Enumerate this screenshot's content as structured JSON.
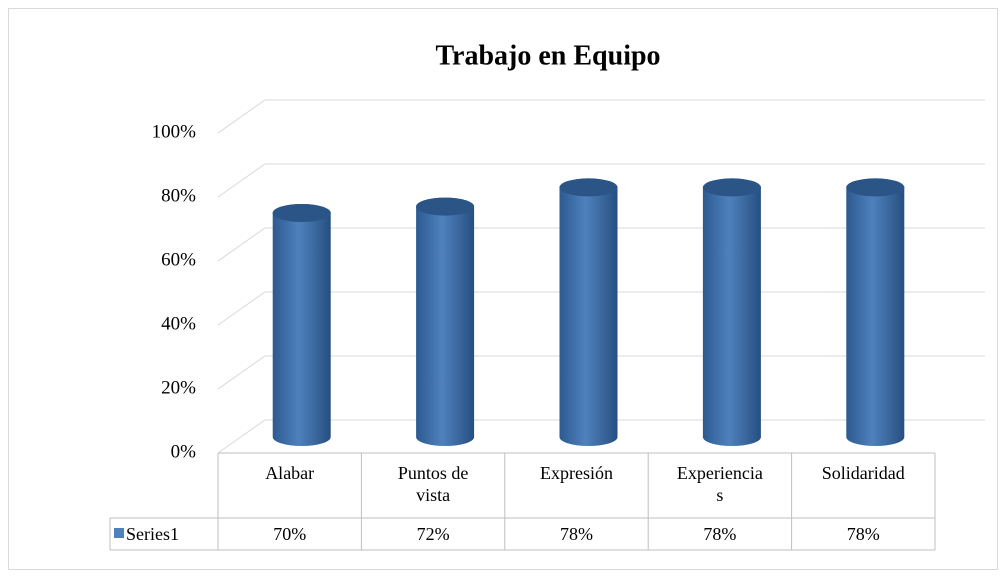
{
  "chart_data": {
    "type": "bar",
    "title": "Trabajo en Equipo",
    "categories": [
      "Alabar",
      "Puntos de vista",
      "Expresión",
      "Experiencias",
      "Solidaridad"
    ],
    "series": [
      {
        "name": "Series1",
        "color": "#4f81bd",
        "values": [
          70,
          72,
          78,
          78,
          78
        ],
        "value_labels": [
          "70%",
          "72%",
          "78%",
          "78%",
          "78%"
        ]
      }
    ],
    "ylim": [
      0,
      100
    ],
    "yticks": [
      {
        "value": 0,
        "label": "0%"
      },
      {
        "value": 20,
        "label": "20%"
      },
      {
        "value": 40,
        "label": "40%"
      },
      {
        "value": 60,
        "label": "60%"
      },
      {
        "value": 80,
        "label": "80%"
      },
      {
        "value": 100,
        "label": "100%"
      }
    ],
    "grid": true
  }
}
